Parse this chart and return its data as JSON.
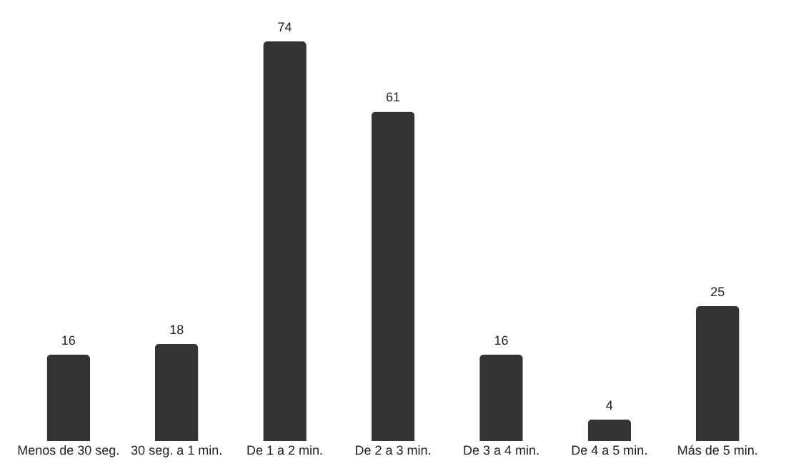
{
  "chart_data": {
    "type": "bar",
    "categories": [
      "Menos de 30 seg.",
      "30 seg. a 1 min.",
      "De 1 a 2 min.",
      "De 2 a 3 min.",
      "De 3 a 4 min.",
      "De 4 a 5 min.",
      "Más de 5 min."
    ],
    "values": [
      16,
      18,
      74,
      61,
      16,
      4,
      25
    ],
    "color": "#333333",
    "data_labels": true
  }
}
